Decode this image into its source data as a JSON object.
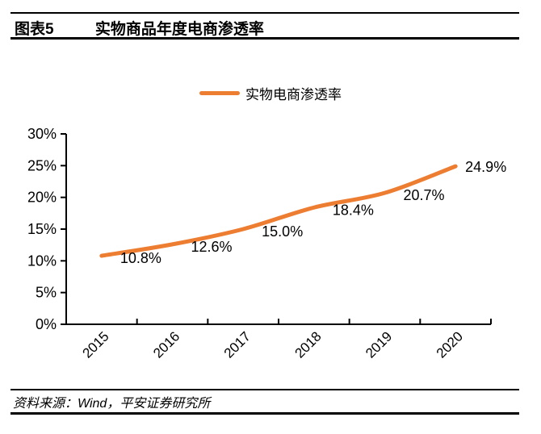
{
  "header": {
    "figure_label": "图表5",
    "title": "实物商品年度电商渗透率"
  },
  "legend": {
    "series_label": "实物电商渗透率",
    "line_color": "#ED7D31"
  },
  "chart_data": {
    "type": "line",
    "title": "实物商品年度电商渗透率",
    "categories": [
      "2015",
      "2016",
      "2017",
      "2018",
      "2019",
      "2020"
    ],
    "series": [
      {
        "name": "实物电商渗透率",
        "values": [
          10.8,
          12.6,
          15.0,
          18.4,
          20.7,
          24.9
        ],
        "color": "#ED7D31",
        "smooth": true
      }
    ],
    "data_labels": [
      "10.8%",
      "12.6%",
      "15.0%",
      "18.4%",
      "20.7%",
      "24.9%"
    ],
    "ytick_labels": [
      "0%",
      "5%",
      "10%",
      "15%",
      "20%",
      "25%",
      "30%"
    ],
    "ylim": [
      0,
      30
    ],
    "xlabel": "",
    "ylabel": "",
    "grid": false,
    "legend_position": "top-center",
    "axis_color": "#000000"
  },
  "footer": {
    "source": "资料来源：Wind，平安证券研究所"
  }
}
